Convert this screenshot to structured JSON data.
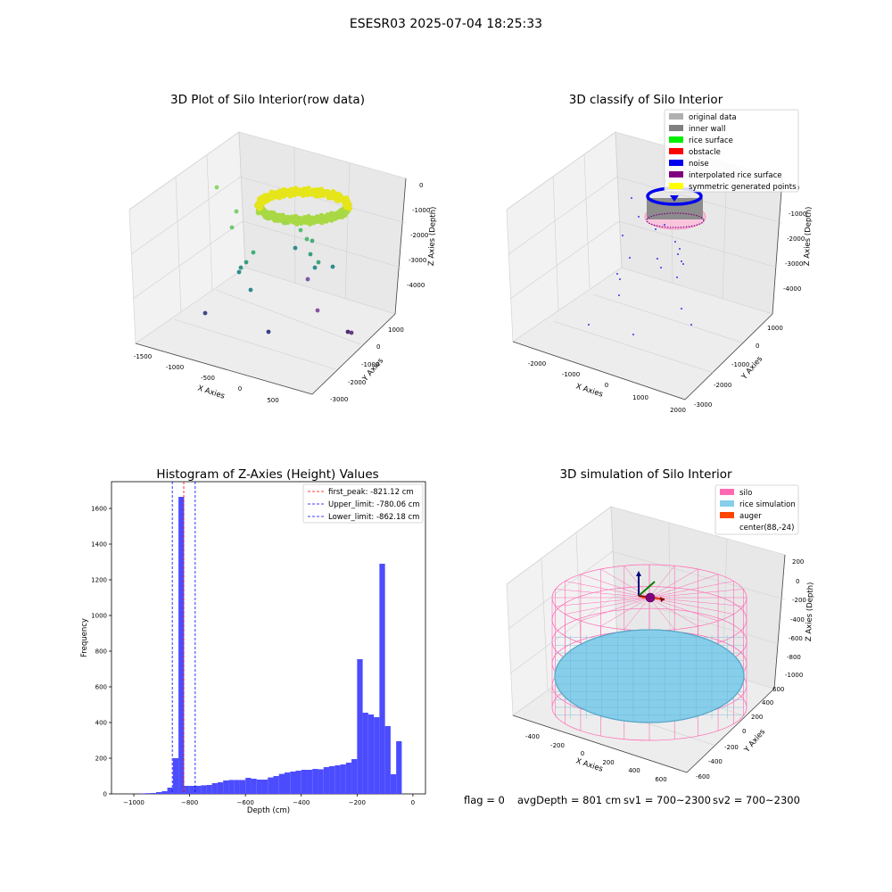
{
  "suptitle": "ESESR03 2025-07-04 18:25:33",
  "footer": {
    "flag": "flag = 0",
    "avg_depth": "avgDepth = 801 cm",
    "sv1": "sv1 = 700~2300",
    "sv2": "sv2 = 700~2300"
  },
  "chart_data": [
    {
      "type": "scatter",
      "title": "3D Plot of Silo Interior(row data)",
      "xlabel": "X Axies",
      "ylabel": "Y Axies",
      "zlabel": "Z Axies (Depth)",
      "x_ticks": [
        "-1500",
        "-1000",
        "-500",
        "0",
        "500"
      ],
      "y_ticks": [
        "-3000",
        "-2000",
        "-1000",
        "0",
        "1000"
      ],
      "z_ticks": [
        "-4000",
        "-3000",
        "-2000",
        "-1000",
        "0"
      ],
      "colormap": "viridis"
    },
    {
      "type": "scatter",
      "title": "3D classify of Silo Interior",
      "xlabel": "X Axies",
      "ylabel": "Y Axies",
      "zlabel": "Z Axies (Depth)",
      "x_ticks": [
        "-2000",
        "-1000",
        "0",
        "1000",
        "2000"
      ],
      "y_ticks": [
        "-3000",
        "-2000",
        "-1000",
        "0",
        "1000"
      ],
      "z_ticks": [
        "-4000",
        "-3000",
        "-2000",
        "-1000",
        "0"
      ],
      "legend_position": "top-right",
      "legend": [
        {
          "label": "original data",
          "color": "#b0b0b0"
        },
        {
          "label": "inner wall",
          "color": "#808080"
        },
        {
          "label": "rice surface",
          "color": "#00ee00"
        },
        {
          "label": "obstacle",
          "color": "#ff0000"
        },
        {
          "label": "noise",
          "color": "#0000ee"
        },
        {
          "label": "interpolated rice surface",
          "color": "#800080"
        },
        {
          "label": "symmetric generated points",
          "color": "#ffff00"
        }
      ]
    },
    {
      "type": "bar",
      "title": "Histogram of Z-Axies (Height) Values",
      "xlabel": "Depth (cm)",
      "ylabel": "Frequency",
      "xlim": [
        -1080,
        45
      ],
      "ylim": [
        0,
        1750
      ],
      "x_ticks": [
        -1000,
        -800,
        -600,
        -400,
        -200,
        0
      ],
      "y_ticks": [
        0,
        200,
        400,
        600,
        800,
        1000,
        1200,
        1400,
        1600
      ],
      "bar_color": "#4c4cff",
      "bin_width": 20,
      "bin_starts": [
        -980,
        -960,
        -940,
        -920,
        -900,
        -880,
        -860,
        -840,
        -820,
        -800,
        -780,
        -760,
        -740,
        -720,
        -700,
        -680,
        -660,
        -640,
        -620,
        -600,
        -580,
        -560,
        -540,
        -520,
        -500,
        -480,
        -460,
        -440,
        -420,
        -400,
        -380,
        -360,
        -340,
        -320,
        -300,
        -280,
        -260,
        -240,
        -220,
        -200,
        -180,
        -160,
        -140,
        -120,
        -100,
        -80,
        -60,
        -40,
        -20
      ],
      "values": [
        3,
        4,
        5,
        10,
        15,
        35,
        200,
        1665,
        45,
        45,
        45,
        48,
        50,
        60,
        65,
        75,
        78,
        78,
        78,
        90,
        85,
        80,
        80,
        92,
        100,
        112,
        120,
        125,
        130,
        135,
        135,
        140,
        138,
        150,
        155,
        160,
        165,
        175,
        195,
        755,
        455,
        445,
        430,
        1290,
        380,
        110,
        295,
        0,
        0
      ],
      "vlines": [
        {
          "label": "first_peak: -821.12 cm",
          "x": -821.12,
          "color": "#ff0000"
        },
        {
          "label": "Upper_limit: -780.06 cm",
          "x": -780.06,
          "color": "#0000ff"
        },
        {
          "label": "Lower_limit: -862.18 cm",
          "x": -862.18,
          "color": "#0000ff"
        }
      ],
      "legend_position": "top-right"
    },
    {
      "type": "scatter",
      "title": "3D simulation of Silo Interior",
      "xlabel": "X Axies",
      "ylabel": "Y Axies",
      "zlabel": "Z Axies (Depth)",
      "x_ticks": [
        "-400",
        "-200",
        "0",
        "200",
        "400",
        "600"
      ],
      "y_ticks": [
        "-600",
        "-400",
        "-200",
        "0",
        "200",
        "400",
        "600"
      ],
      "z_ticks": [
        "-1000",
        "-800",
        "-600",
        "-400",
        "-200",
        "0",
        "200"
      ],
      "legend_position": "top-right",
      "legend": [
        {
          "label": "silo",
          "color": "#ff69b4"
        },
        {
          "label": "rice simulation",
          "color": "#87ceeb"
        },
        {
          "label": "auger",
          "color": "#ff4500"
        },
        {
          "label": "center(88,-24)",
          "color": "none"
        }
      ]
    }
  ]
}
